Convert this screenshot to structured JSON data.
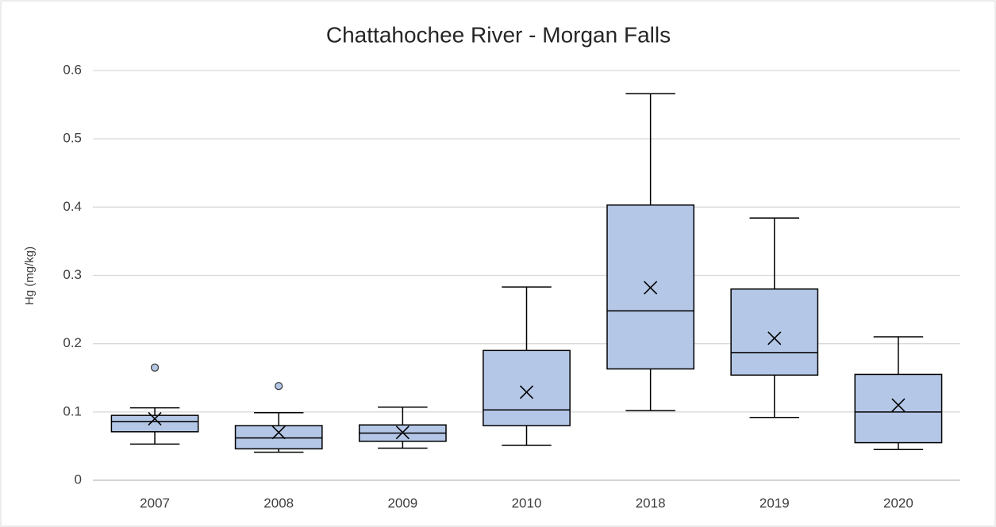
{
  "chart_data": {
    "type": "box",
    "title": "Chattahochee River - Morgan Falls",
    "y_label": "Hg (mg/kg)",
    "categories": [
      "2007",
      "2008",
      "2009",
      "2010",
      "2018",
      "2019",
      "2020"
    ],
    "min": [
      0.053,
      0.041,
      0.047,
      0.051,
      0.102,
      0.092,
      0.045
    ],
    "q1": [
      0.071,
      0.046,
      0.057,
      0.08,
      0.163,
      0.154,
      0.055
    ],
    "median": [
      0.086,
      0.062,
      0.069,
      0.103,
      0.248,
      0.187,
      0.1
    ],
    "q3": [
      0.095,
      0.08,
      0.081,
      0.19,
      0.403,
      0.28,
      0.155
    ],
    "max": [
      0.106,
      0.099,
      0.107,
      0.283,
      0.566,
      0.384,
      0.21
    ],
    "mean": [
      0.09,
      0.07,
      0.07,
      0.129,
      0.282,
      0.208,
      0.11
    ],
    "outliers": [
      [
        0.165
      ],
      [
        0.138
      ],
      [],
      [],
      [],
      [],
      []
    ],
    "color": "#b4c7e7",
    "ylim": [
      0,
      0.6
    ],
    "yticks": [
      0,
      0.1,
      0.2,
      0.3,
      0.4,
      0.5,
      0.6
    ],
    "grid": true
  }
}
